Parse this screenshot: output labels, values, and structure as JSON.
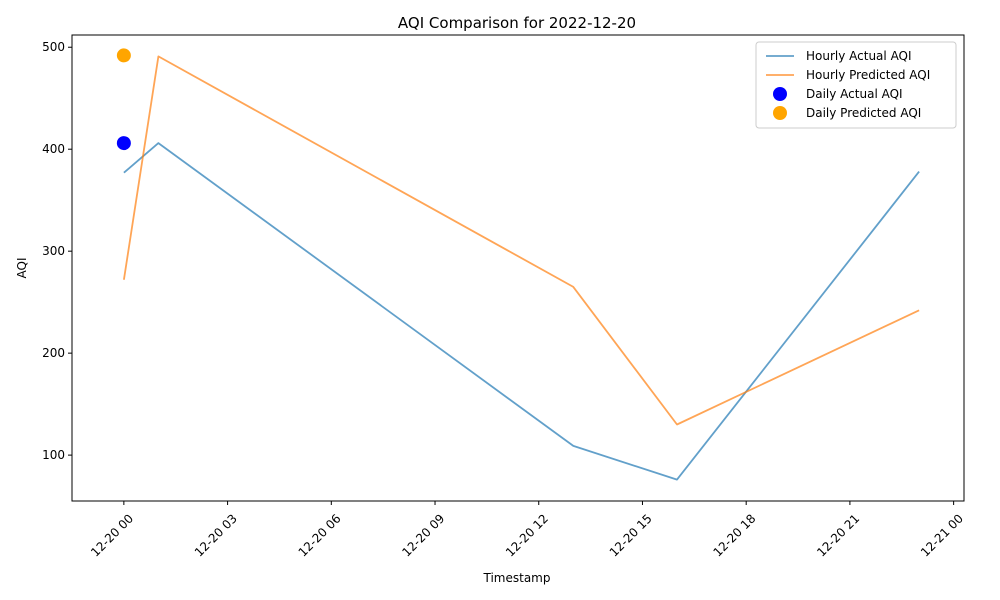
{
  "chart_data": {
    "type": "line",
    "title": "AQI Comparison for 2022-12-20",
    "xlabel": "Timestamp",
    "ylabel": "AQI",
    "x_range_hours": [
      -1.5,
      24.3
    ],
    "ylim": [
      55,
      512
    ],
    "x_ticks": [
      {
        "hour": 0,
        "label": "12-20 00"
      },
      {
        "hour": 3,
        "label": "12-20 03"
      },
      {
        "hour": 6,
        "label": "12-20 06"
      },
      {
        "hour": 9,
        "label": "12-20 09"
      },
      {
        "hour": 12,
        "label": "12-20 12"
      },
      {
        "hour": 15,
        "label": "12-20 15"
      },
      {
        "hour": 18,
        "label": "12-20 18"
      },
      {
        "hour": 21,
        "label": "12-20 21"
      },
      {
        "hour": 24,
        "label": "12-21 00"
      }
    ],
    "y_ticks": [
      {
        "value": 100,
        "label": "100"
      },
      {
        "value": 200,
        "label": "200"
      },
      {
        "value": 300,
        "label": "300"
      },
      {
        "value": 400,
        "label": "400"
      },
      {
        "value": 500,
        "label": "500"
      }
    ],
    "grid": false,
    "legend_position": "top-right",
    "series": [
      {
        "name": "Hourly Actual AQI",
        "kind": "line",
        "color": "#1f77b4",
        "points": [
          {
            "hour": 0,
            "value": 377
          },
          {
            "hour": 1,
            "value": 406
          },
          {
            "hour": 13,
            "value": 109
          },
          {
            "hour": 16,
            "value": 76
          },
          {
            "hour": 23,
            "value": 378
          }
        ]
      },
      {
        "name": "Hourly Predicted AQI",
        "kind": "line",
        "color": "#ff7f0e",
        "points": [
          {
            "hour": 0,
            "value": 272
          },
          {
            "hour": 1,
            "value": 491
          },
          {
            "hour": 13,
            "value": 265
          },
          {
            "hour": 16,
            "value": 130
          },
          {
            "hour": 23,
            "value": 242
          }
        ]
      },
      {
        "name": "Daily Actual AQI",
        "kind": "scatter",
        "color": "#0000ff",
        "points": [
          {
            "hour": 0,
            "value": 406
          }
        ]
      },
      {
        "name": "Daily Predicted AQI",
        "kind": "scatter",
        "color": "#ffa500",
        "points": [
          {
            "hour": 0,
            "value": 492
          }
        ]
      }
    ]
  }
}
